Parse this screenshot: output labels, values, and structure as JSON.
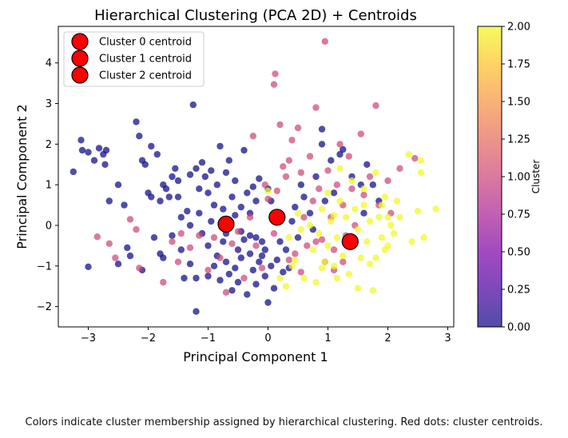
{
  "chart_data": {
    "type": "scatter",
    "title": "Hierarchical Clustering (PCA 2D) + Centroids",
    "xlabel": "Principal Component 1",
    "ylabel": "Principal Component 2",
    "xlim": [
      -3.5,
      3.1
    ],
    "ylim": [
      -2.5,
      4.9
    ],
    "xticks": [
      "−3",
      "−2",
      "−1",
      "0",
      "1",
      "2",
      "3"
    ],
    "yticks": [
      "−2",
      "−1",
      "0",
      "1",
      "2",
      "3",
      "4"
    ],
    "grid": false,
    "legend_position": "top-left",
    "colormap": "plasma",
    "colorbar": {
      "label": "Cluster",
      "range": [
        0.0,
        2.0
      ],
      "ticks": [
        "0.00",
        "0.25",
        "0.50",
        "0.75",
        "1.00",
        "1.25",
        "1.50",
        "1.75",
        "2.00"
      ]
    },
    "cluster_colors": [
      "#0d0887",
      "#cc4778",
      "#f0f921"
    ],
    "centroid_color": "#ff0000",
    "centroids": [
      {
        "label": "Cluster 0 centroid",
        "x": -0.7,
        "y": 0.03
      },
      {
        "label": "Cluster 1 centroid",
        "x": 0.15,
        "y": 0.2
      },
      {
        "label": "Cluster 2 centroid",
        "x": 1.37,
        "y": -0.4
      }
    ],
    "series": [
      {
        "cluster": 0,
        "points": [
          [
            -3.25,
            1.32
          ],
          [
            -3.1,
            1.85
          ],
          [
            -3.12,
            2.1
          ],
          [
            -3.0,
            1.8
          ],
          [
            -2.9,
            1.6
          ],
          [
            -2.82,
            1.9
          ],
          [
            -2.75,
            1.75
          ],
          [
            -2.72,
            1.5
          ],
          [
            -2.7,
            1.85
          ],
          [
            -3.0,
            -1.02
          ],
          [
            -2.65,
            0.6
          ],
          [
            -2.5,
            1.0
          ],
          [
            -2.4,
            0.5
          ],
          [
            -2.35,
            -0.55
          ],
          [
            -2.2,
            2.55
          ],
          [
            -2.15,
            2.2
          ],
          [
            -2.1,
            1.6
          ],
          [
            -2.05,
            1.5
          ],
          [
            -1.95,
            1.95
          ],
          [
            -2.0,
            0.8
          ],
          [
            -1.95,
            0.7
          ],
          [
            -1.85,
            1.75
          ],
          [
            -1.8,
            0.6
          ],
          [
            -1.75,
            -0.8
          ],
          [
            -1.7,
            0.9
          ],
          [
            -1.65,
            0.7
          ],
          [
            -1.6,
            1.2
          ],
          [
            -1.55,
            1.4
          ],
          [
            -1.5,
            1.1
          ],
          [
            -1.45,
            0.2
          ],
          [
            -1.4,
            -1.3
          ],
          [
            -1.35,
            0.35
          ],
          [
            -1.3,
            1.25
          ],
          [
            -1.25,
            2.97
          ],
          [
            -1.2,
            1.4
          ],
          [
            -1.15,
            0.9
          ],
          [
            -1.1,
            1.55
          ],
          [
            -1.05,
            1.2
          ],
          [
            -1.0,
            0.8
          ],
          [
            -0.95,
            1.35
          ],
          [
            -0.9,
            0.5
          ],
          [
            -0.85,
            1.0
          ],
          [
            -0.8,
            1.95
          ],
          [
            -0.75,
            0.4
          ],
          [
            -0.7,
            1.3
          ],
          [
            -0.65,
            1.6
          ],
          [
            -0.6,
            0.7
          ],
          [
            -0.55,
            1.1
          ],
          [
            -0.5,
            -0.6
          ],
          [
            -0.45,
            0.45
          ],
          [
            -0.4,
            1.85
          ],
          [
            -0.35,
            0.8
          ],
          [
            -0.3,
            0.3
          ],
          [
            -0.25,
            0.95
          ],
          [
            -0.2,
            -0.3
          ],
          [
            -0.15,
            1.15
          ],
          [
            -0.1,
            -0.4
          ],
          [
            -0.05,
            -0.6
          ],
          [
            0.0,
            0.9
          ],
          [
            0.05,
            0.6
          ],
          [
            -1.2,
            -2.12
          ],
          [
            -1.1,
            -0.2
          ],
          [
            -1.0,
            -0.5
          ],
          [
            -0.9,
            -1.0
          ],
          [
            -0.85,
            -0.75
          ],
          [
            -0.8,
            -1.35
          ],
          [
            -0.75,
            -0.4
          ],
          [
            -0.7,
            -0.9
          ],
          [
            -0.65,
            -1.2
          ],
          [
            -0.6,
            -1.6
          ],
          [
            -0.55,
            -1.05
          ],
          [
            -0.5,
            -1.4
          ],
          [
            -0.45,
            -0.8
          ],
          [
            -0.4,
            -0.35
          ],
          [
            -0.35,
            -1.7
          ],
          [
            -0.3,
            -0.7
          ],
          [
            -0.25,
            -1.1
          ],
          [
            -0.2,
            -1.45
          ],
          [
            -0.15,
            -0.9
          ],
          [
            -0.1,
            -0.75
          ],
          [
            -0.05,
            -1.25
          ],
          [
            0.0,
            -1.9
          ],
          [
            0.05,
            -1.0
          ],
          [
            0.1,
            -1.55
          ],
          [
            0.15,
            -0.85
          ],
          [
            0.2,
            -0.4
          ],
          [
            0.25,
            -1.15
          ],
          [
            0.3,
            -0.6
          ],
          [
            0.35,
            -1.05
          ],
          [
            0.4,
            0.1
          ],
          [
            0.45,
            0.45
          ],
          [
            0.5,
            -0.3
          ],
          [
            0.55,
            1.0
          ],
          [
            0.6,
            0.7
          ],
          [
            0.7,
            0.3
          ],
          [
            0.75,
            -0.1
          ],
          [
            0.8,
            1.2
          ],
          [
            0.9,
            2.0
          ],
          [
            0.9,
            2.37
          ],
          [
            0.95,
            0.6
          ],
          [
            1.05,
            1.6
          ],
          [
            1.1,
            0.8
          ],
          [
            1.2,
            1.75
          ],
          [
            1.25,
            1.87
          ],
          [
            1.4,
            1.2
          ],
          [
            1.55,
            1.0
          ],
          [
            1.65,
            1.5
          ],
          [
            1.75,
            1.0
          ],
          [
            1.85,
            0.6
          ],
          [
            1.6,
            0.3
          ],
          [
            -2.5,
            -0.95
          ],
          [
            -2.3,
            -0.75
          ],
          [
            -2.1,
            -1.1
          ],
          [
            -1.9,
            -0.3
          ],
          [
            -1.8,
            -0.7
          ],
          [
            -1.6,
            -0.25
          ],
          [
            -1.45,
            -0.6
          ],
          [
            -1.3,
            -0.95
          ],
          [
            -1.2,
            -1.3
          ],
          [
            -1.0,
            -1.25
          ],
          [
            -1.5,
            0.7
          ],
          [
            -1.3,
            0.0
          ],
          [
            -1.15,
            0.3
          ],
          [
            -0.95,
            0.1
          ],
          [
            -0.7,
            -0.2
          ],
          [
            -0.55,
            0.25
          ],
          [
            -0.45,
            -0.15
          ],
          [
            -0.3,
            -0.25
          ],
          [
            -0.2,
            0.6
          ],
          [
            -1.75,
            1.0
          ]
        ]
      },
      {
        "cluster": 1,
        "points": [
          [
            -2.85,
            -0.28
          ],
          [
            -2.65,
            -0.45
          ],
          [
            -2.55,
            -0.8
          ],
          [
            -2.2,
            -0.1
          ],
          [
            -2.15,
            -1.05
          ],
          [
            -2.3,
            0.15
          ],
          [
            -1.75,
            -1.4
          ],
          [
            -1.6,
            -0.4
          ],
          [
            -1.5,
            -0.9
          ],
          [
            -1.3,
            -0.55
          ],
          [
            -1.15,
            -0.25
          ],
          [
            -1.0,
            -1.1
          ],
          [
            -0.9,
            -0.3
          ],
          [
            -0.8,
            -0.8
          ],
          [
            -0.7,
            -1.65
          ],
          [
            -0.6,
            -0.45
          ],
          [
            -0.5,
            -0.15
          ],
          [
            -0.4,
            -1.3
          ],
          [
            -0.3,
            0.2
          ],
          [
            -0.2,
            -0.5
          ],
          [
            -0.1,
            -1.05
          ],
          [
            0.0,
            0.65
          ],
          [
            0.1,
            -0.2
          ],
          [
            0.15,
            0.85
          ],
          [
            0.1,
            3.47
          ],
          [
            0.12,
            3.73
          ],
          [
            0.2,
            2.48
          ],
          [
            0.3,
            1.2
          ],
          [
            0.35,
            1.6
          ],
          [
            0.4,
            2.1
          ],
          [
            0.45,
            -0.7
          ],
          [
            0.5,
            2.4
          ],
          [
            0.55,
            1.3
          ],
          [
            0.6,
            0.2
          ],
          [
            0.65,
            -0.5
          ],
          [
            0.7,
            1.7
          ],
          [
            0.8,
            2.9
          ],
          [
            0.95,
            4.53
          ],
          [
            0.75,
            0.6
          ],
          [
            0.85,
            0.9
          ],
          [
            0.9,
            -0.35
          ],
          [
            1.0,
            1.35
          ],
          [
            1.05,
            0.2
          ],
          [
            1.1,
            -0.6
          ],
          [
            1.15,
            1.0
          ],
          [
            1.2,
            2.0
          ],
          [
            1.25,
            0.5
          ],
          [
            1.3,
            -0.25
          ],
          [
            1.35,
            1.7
          ],
          [
            1.4,
            0.9
          ],
          [
            1.45,
            0.0
          ],
          [
            1.55,
            2.25
          ],
          [
            1.6,
            0.75
          ],
          [
            1.7,
            1.2
          ],
          [
            1.8,
            2.95
          ],
          [
            1.85,
            0.5
          ],
          [
            2.0,
            1.1
          ],
          [
            2.05,
            0.3
          ],
          [
            2.2,
            1.4
          ],
          [
            2.45,
            1.65
          ],
          [
            -0.25,
            2.2
          ],
          [
            -0.05,
            1.0
          ],
          [
            0.25,
            1.45
          ],
          [
            0.35,
            -0.85
          ],
          [
            0.55,
            -1.15
          ],
          [
            0.8,
            -0.4
          ],
          [
            0.95,
            -0.9
          ],
          [
            1.1,
            -1.1
          ],
          [
            1.25,
            -0.9
          ],
          [
            -1.45,
            -0.2
          ]
        ]
      },
      {
        "cluster": 2,
        "points": [
          [
            0.0,
            0.85
          ],
          [
            0.2,
            -1.3
          ],
          [
            0.3,
            -1.5
          ],
          [
            0.35,
            -0.3
          ],
          [
            0.45,
            -0.85
          ],
          [
            0.5,
            0.3
          ],
          [
            0.55,
            -0.1
          ],
          [
            0.6,
            -1.3
          ],
          [
            0.7,
            0.0
          ],
          [
            0.75,
            -0.6
          ],
          [
            0.8,
            -1.4
          ],
          [
            0.85,
            -0.2
          ],
          [
            0.9,
            0.4
          ],
          [
            0.95,
            -0.9
          ],
          [
            1.0,
            -0.5
          ],
          [
            1.05,
            0.1
          ],
          [
            1.1,
            -1.0
          ],
          [
            1.15,
            -0.3
          ],
          [
            1.2,
            0.6
          ],
          [
            1.25,
            -0.75
          ],
          [
            1.3,
            0.2
          ],
          [
            1.35,
            -1.2
          ],
          [
            1.4,
            -0.5
          ],
          [
            1.45,
            0.4
          ],
          [
            1.5,
            -0.1
          ],
          [
            1.55,
            -0.8
          ],
          [
            1.6,
            0.5
          ],
          [
            1.65,
            -0.4
          ],
          [
            1.7,
            0.1
          ],
          [
            1.75,
            -1.6
          ],
          [
            1.8,
            -0.8
          ],
          [
            1.85,
            0.2
          ],
          [
            1.9,
            -0.3
          ],
          [
            1.95,
            0.7
          ],
          [
            2.0,
            -0.5
          ],
          [
            2.05,
            0.0
          ],
          [
            2.1,
            -0.2
          ],
          [
            2.2,
            0.2
          ],
          [
            2.35,
            1.75
          ],
          [
            2.4,
            -0.4
          ],
          [
            2.5,
            0.35
          ],
          [
            2.55,
            1.6
          ],
          [
            2.6,
            -0.3
          ],
          [
            2.8,
            0.4
          ],
          [
            2.55,
            1.3
          ],
          [
            1.2,
            1.4
          ],
          [
            1.4,
            1.1
          ],
          [
            1.6,
            0.9
          ],
          [
            1.8,
            1.3
          ],
          [
            1.9,
            0.5
          ],
          [
            2.0,
            0.2
          ],
          [
            1.95,
            -0.6
          ],
          [
            1.5,
            -1.55
          ],
          [
            1.15,
            -1.3
          ],
          [
            0.9,
            -1.05
          ],
          [
            1.0,
            0.8
          ],
          [
            1.1,
            0.25
          ],
          [
            1.7,
            -0.95
          ],
          [
            2.15,
            0.6
          ],
          [
            0.4,
            -1.0
          ]
        ]
      }
    ],
    "caption": "Colors indicate cluster membership assigned by hierarchical clustering. Red dots: cluster centroids."
  }
}
